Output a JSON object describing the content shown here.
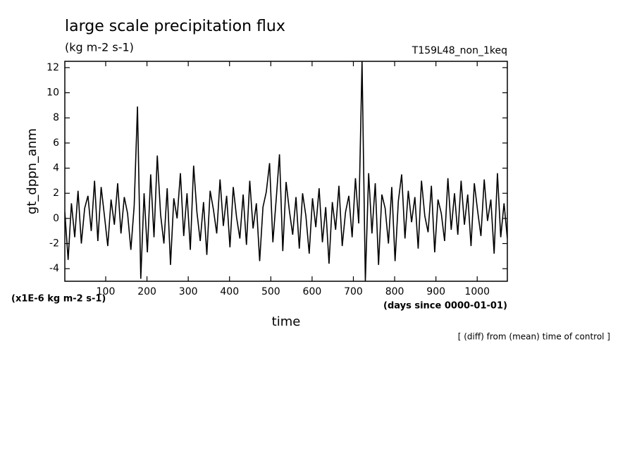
{
  "chart_data": {
    "type": "line",
    "title": "large scale precipitation flux",
    "subtitle": "(kg m-2 s-1)",
    "run_label": "T159L48_non_1keq",
    "y_label": "gt_dppn_anm",
    "y_unit": "(x1E-6 kg m-2 s-1)",
    "x_label": "time",
    "x_unit": "(days since 0000-01-01)",
    "note": "[ (diff) from (mean) time of control ]",
    "xlim": [
      1,
      1073
    ],
    "ylim": [
      -5,
      12.5
    ],
    "xticks": [
      100,
      200,
      300,
      400,
      500,
      600,
      700,
      800,
      900,
      1000
    ],
    "yticks": [
      -4,
      -2,
      0,
      2,
      4,
      6,
      8,
      10,
      12
    ],
    "x": [
      1,
      9,
      17,
      25,
      33,
      41,
      49,
      57,
      65,
      73,
      81,
      89,
      97,
      105,
      113,
      121,
      129,
      137,
      145,
      153,
      161,
      169,
      177,
      185,
      193,
      201,
      209,
      217,
      225,
      233,
      241,
      249,
      257,
      265,
      273,
      281,
      289,
      297,
      305,
      313,
      321,
      329,
      337,
      345,
      353,
      361,
      369,
      377,
      385,
      393,
      401,
      409,
      417,
      425,
      433,
      441,
      449,
      457,
      465,
      473,
      481,
      489,
      497,
      505,
      513,
      521,
      529,
      537,
      545,
      553,
      561,
      569,
      577,
      585,
      593,
      601,
      609,
      617,
      625,
      633,
      641,
      649,
      657,
      665,
      673,
      681,
      689,
      697,
      705,
      713,
      721,
      729,
      737,
      745,
      753,
      761,
      769,
      777,
      785,
      793,
      801,
      809,
      817,
      825,
      833,
      841,
      849,
      857,
      865,
      873,
      881,
      889,
      897,
      905,
      913,
      921,
      929,
      937,
      945,
      953,
      961,
      969,
      977,
      985,
      993,
      1001,
      1009,
      1017,
      1025,
      1033,
      1041,
      1049,
      1057,
      1065,
      1073
    ],
    "series": [
      {
        "color": "#000000",
        "values": [
          0.5,
          -3.3,
          1.2,
          -1.5,
          2.2,
          -2.0,
          0.8,
          1.8,
          -1.0,
          3.0,
          -1.8,
          2.5,
          0.2,
          -2.2,
          1.5,
          -0.5,
          2.8,
          -1.2,
          1.7,
          0.4,
          -2.5,
          1.0,
          8.9,
          -4.8,
          2.0,
          -2.7,
          3.5,
          -1.5,
          5.0,
          0.3,
          -2.0,
          2.4,
          -3.7,
          1.6,
          0.0,
          3.6,
          -1.4,
          2.0,
          -2.5,
          4.2,
          0.5,
          -1.8,
          1.3,
          -2.9,
          2.2,
          0.7,
          -1.2,
          3.1,
          -0.6,
          1.8,
          -2.3,
          2.5,
          0.1,
          -1.6,
          1.9,
          -2.1,
          3.0,
          -0.8,
          1.2,
          -3.4,
          0.9,
          2.1,
          4.4,
          -1.9,
          1.5,
          5.1,
          -2.6,
          2.9,
          0.6,
          -1.3,
          1.7,
          -2.4,
          2.0,
          0.2,
          -2.8,
          1.6,
          -0.7,
          2.4,
          -1.9,
          0.9,
          -3.6,
          1.3,
          -0.9,
          2.6,
          -2.2,
          0.5,
          1.8,
          -1.5,
          3.2,
          -0.4,
          12.5,
          -5.0,
          3.6,
          -1.2,
          2.8,
          -3.7,
          1.9,
          0.8,
          -2.0,
          2.5,
          -3.4,
          1.4,
          3.5,
          -1.6,
          2.2,
          -0.3,
          1.7,
          -2.4,
          3.0,
          0.2,
          -1.1,
          2.6,
          -2.7,
          1.5,
          0.4,
          -1.8,
          3.2,
          -0.9,
          2.0,
          -1.3,
          3.0,
          -0.5,
          1.9,
          -2.2,
          2.8,
          0.6,
          -1.4,
          3.1,
          -0.2,
          1.5,
          -2.8,
          3.6,
          -1.5,
          1.2,
          -1.6
        ]
      }
    ]
  }
}
